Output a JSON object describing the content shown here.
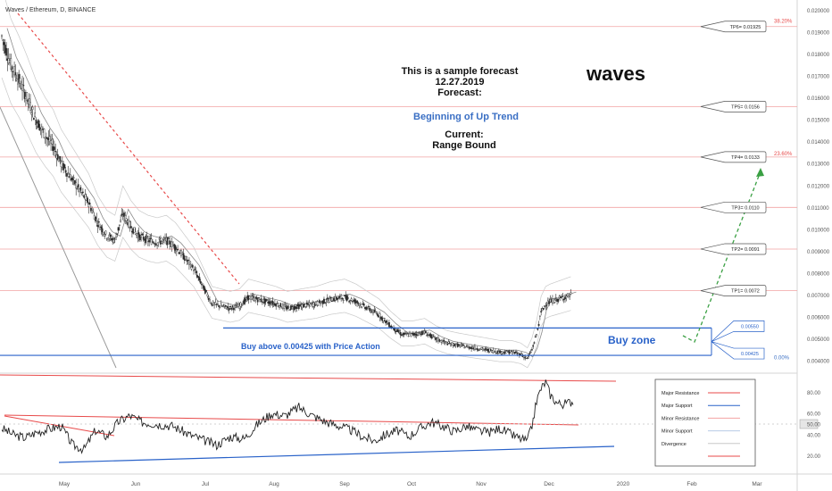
{
  "header": {
    "symbol_label": "Waves / Ethereum, D, BINANCE"
  },
  "forecast_note": {
    "line1": "This is a sample forecast",
    "line2": "12.27.2019",
    "line3": "Forecast:",
    "forecast": "Beginning of Up Trend",
    "current_label": "Current:",
    "current": "Range Bound"
  },
  "watermark": "waves",
  "colors": {
    "candle": "#2b2b2b",
    "resistance": "#e84a4a",
    "support": "#2962c9",
    "minor_resistance": "#f2a3a3",
    "minor_support": "#b8cbe6",
    "accent_text": "#3a6fc4",
    "up_arrow": "#3aa043"
  },
  "targets": [
    {
      "label": "TP6= 0.01925",
      "value": 0.01925
    },
    {
      "label": "TP5= 0.0156",
      "value": 0.0156
    },
    {
      "label": "TP4= 0.0133",
      "value": 0.0133
    },
    {
      "label": "TP3= 0.0110",
      "value": 0.011
    },
    {
      "label": "TP2= 0.0091",
      "value": 0.0091
    },
    {
      "label": "TP1= 0.0072",
      "value": 0.0072
    }
  ],
  "buy_zone": {
    "label": "Buy zone",
    "upper_label": "0.00550",
    "lower_label": "0.00425",
    "upper": 0.0055,
    "lower": 0.00425
  },
  "buy_note": "Buy above 0.00425 with Price Action",
  "fib_levels": [
    {
      "label": "38.20%",
      "value": 0.0193
    },
    {
      "label": "23.60%",
      "value": 0.01325
    },
    {
      "label": "0.00%",
      "value": 0.00395
    }
  ],
  "legend": {
    "items": [
      {
        "label": "Major Resistance",
        "color": "#e84a4a"
      },
      {
        "label": "Major Support",
        "color": "#2962c9"
      },
      {
        "label": "Minor Resistance",
        "color": "#f2a3a3"
      },
      {
        "label": "Minor Support",
        "color": "#b8cbe6"
      },
      {
        "label": "Divergence",
        "color": "#c8c8c8"
      },
      {
        "label": "",
        "color": "#e84a4a"
      }
    ]
  },
  "chart_data": {
    "type": "candlestick",
    "x_ticks": [
      "May",
      "Jun",
      "Jul",
      "Aug",
      "Sep",
      "Oct",
      "Nov",
      "Dec",
      "2020",
      "Feb",
      "Mar"
    ],
    "y_ticks": [
      "0.020000",
      "0.019000",
      "0.018000",
      "0.017000",
      "0.016000",
      "0.015000",
      "0.014000",
      "0.013000",
      "0.012000",
      "0.011000",
      "0.010000",
      "0.009000",
      "0.008000",
      "0.007000",
      "0.006000",
      "0.005000",
      "0.004000"
    ],
    "ylim": [
      0.0036,
      0.0203
    ],
    "price_path": [
      [
        0,
        0.0188
      ],
      [
        8,
        0.0175
      ],
      [
        15,
        0.0168
      ],
      [
        22,
        0.016
      ],
      [
        30,
        0.015
      ],
      [
        38,
        0.0143
      ],
      [
        45,
        0.0138
      ],
      [
        52,
        0.013
      ],
      [
        60,
        0.0124
      ],
      [
        68,
        0.0118
      ],
      [
        76,
        0.0112
      ],
      [
        84,
        0.0103
      ],
      [
        92,
        0.0097
      ],
      [
        99,
        0.0095
      ],
      [
        106,
        0.0107
      ],
      [
        113,
        0.0101
      ],
      [
        120,
        0.0097
      ],
      [
        128,
        0.0095
      ],
      [
        136,
        0.0094
      ],
      [
        144,
        0.0095
      ],
      [
        152,
        0.0092
      ],
      [
        160,
        0.0087
      ],
      [
        168,
        0.0082
      ],
      [
        176,
        0.0074
      ],
      [
        184,
        0.0066
      ],
      [
        192,
        0.0065
      ],
      [
        200,
        0.0064
      ],
      [
        208,
        0.0065
      ],
      [
        216,
        0.0069
      ],
      [
        224,
        0.0068
      ],
      [
        232,
        0.0067
      ],
      [
        240,
        0.0066
      ],
      [
        250,
        0.0064
      ],
      [
        262,
        0.0065
      ],
      [
        275,
        0.0066
      ],
      [
        288,
        0.0068
      ],
      [
        300,
        0.0069
      ],
      [
        310,
        0.0067
      ],
      [
        320,
        0.0064
      ],
      [
        330,
        0.0061
      ],
      [
        340,
        0.0056
      ],
      [
        350,
        0.0052
      ],
      [
        360,
        0.0052
      ],
      [
        370,
        0.0053
      ],
      [
        380,
        0.005
      ],
      [
        390,
        0.0048
      ],
      [
        400,
        0.0047
      ],
      [
        412,
        0.0046
      ],
      [
        424,
        0.0045
      ],
      [
        436,
        0.0044
      ],
      [
        446,
        0.0044
      ],
      [
        454,
        0.0043
      ],
      [
        460,
        0.0041
      ],
      [
        464,
        0.0045
      ],
      [
        468,
        0.0052
      ],
      [
        472,
        0.0062
      ],
      [
        476,
        0.0066
      ],
      [
        480,
        0.0067
      ],
      [
        486,
        0.0068
      ],
      [
        492,
        0.0069
      ],
      [
        498,
        0.007
      ]
    ],
    "rsi_ticks": [
      "80.00",
      "60.00",
      "50.00",
      "40.00",
      "20.00"
    ],
    "rsi_marker": "50.00",
    "rsi_ylim": [
      5,
      95
    ],
    "rsi_path": [
      [
        0,
        46
      ],
      [
        10,
        40
      ],
      [
        20,
        37
      ],
      [
        30,
        42
      ],
      [
        40,
        45
      ],
      [
        52,
        48
      ],
      [
        62,
        30
      ],
      [
        72,
        26
      ],
      [
        82,
        44
      ],
      [
        92,
        38
      ],
      [
        102,
        52
      ],
      [
        112,
        58
      ],
      [
        122,
        52
      ],
      [
        136,
        50
      ],
      [
        150,
        48
      ],
      [
        164,
        40
      ],
      [
        176,
        35
      ],
      [
        188,
        30
      ],
      [
        200,
        38
      ],
      [
        212,
        36
      ],
      [
        224,
        50
      ],
      [
        236,
        60
      ],
      [
        248,
        58
      ],
      [
        260,
        66
      ],
      [
        272,
        58
      ],
      [
        284,
        52
      ],
      [
        296,
        48
      ],
      [
        306,
        44
      ],
      [
        316,
        38
      ],
      [
        326,
        34
      ],
      [
        336,
        40
      ],
      [
        346,
        44
      ],
      [
        356,
        38
      ],
      [
        366,
        46
      ],
      [
        376,
        52
      ],
      [
        386,
        48
      ],
      [
        396,
        43
      ],
      [
        406,
        48
      ],
      [
        416,
        44
      ],
      [
        426,
        42
      ],
      [
        436,
        46
      ],
      [
        446,
        40
      ],
      [
        454,
        36
      ],
      [
        460,
        34
      ],
      [
        464,
        48
      ],
      [
        468,
        72
      ],
      [
        472,
        84
      ],
      [
        476,
        90
      ],
      [
        480,
        78
      ],
      [
        486,
        70
      ],
      [
        492,
        69
      ],
      [
        500,
        72
      ]
    ]
  }
}
